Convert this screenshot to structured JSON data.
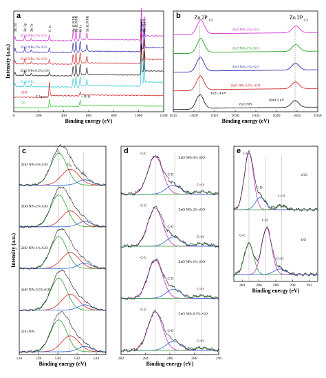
{
  "chart_data": [
    {
      "id": "a",
      "type": "line",
      "panel_label": "a",
      "xlabel": "Binding energy (eV)",
      "ylabel": "Intensity (a.u.)",
      "xlim": [
        0,
        1200
      ],
      "xticks": [
        0,
        200,
        400,
        600,
        800,
        1000,
        1200
      ],
      "peak_labels": [
        {
          "text": "Zn 3d",
          "x": 10
        },
        {
          "text": "Zn 3p",
          "x": 88
        },
        {
          "text": "Zn 3s",
          "x": 140
        },
        {
          "text": "C 1s",
          "x": 285
        },
        {
          "text": "Zn (LMM)",
          "x": 498
        },
        {
          "text": "Zn (LMM)",
          "x": 475
        },
        {
          "text": "O 1s",
          "x": 531
        },
        {
          "text": "Zn (LMM)",
          "x": 585
        },
        {
          "text": "Zn 2p3/2",
          "x": 1021
        },
        {
          "text": "Zn 2p1/2",
          "x": 1044
        }
      ],
      "series": [
        {
          "name": "ZnO NPs-3% rGO",
          "color": "#d030d0",
          "offset": 6,
          "features": [
            [
              10,
              0.3
            ],
            [
              88,
              0.4
            ],
            [
              140,
              0.2
            ],
            [
              285,
              0.5
            ],
            [
              475,
              0.8
            ],
            [
              498,
              1.0
            ],
            [
              531,
              0.9
            ],
            [
              585,
              0.6
            ],
            [
              1021,
              2.6
            ],
            [
              1044,
              1.8
            ]
          ]
        },
        {
          "name": "ZnO NPs-2% rGO",
          "color": "#2828b0",
          "offset": 5,
          "features": [
            [
              10,
              0.3
            ],
            [
              88,
              0.4
            ],
            [
              140,
              0.2
            ],
            [
              285,
              0.4
            ],
            [
              475,
              0.8
            ],
            [
              498,
              1.0
            ],
            [
              531,
              0.9
            ],
            [
              585,
              0.6
            ],
            [
              1021,
              2.6
            ],
            [
              1044,
              1.8
            ]
          ]
        },
        {
          "name": "ZnO NPs-1% rGO",
          "color": "#d02828",
          "offset": 4,
          "features": [
            [
              10,
              0.3
            ],
            [
              88,
              0.4
            ],
            [
              140,
              0.2
            ],
            [
              285,
              0.4
            ],
            [
              475,
              0.8
            ],
            [
              498,
              1.0
            ],
            [
              531,
              0.9
            ],
            [
              585,
              0.6
            ],
            [
              1021,
              2.6
            ],
            [
              1044,
              1.8
            ]
          ]
        },
        {
          "name": "ZnO NPs-0.5% rGO",
          "color": "#202020",
          "offset": 3,
          "features": [
            [
              10,
              0.3
            ],
            [
              88,
              0.4
            ],
            [
              140,
              0.2
            ],
            [
              285,
              0.3
            ],
            [
              475,
              0.8
            ],
            [
              498,
              1.0
            ],
            [
              531,
              0.9
            ],
            [
              585,
              0.6
            ],
            [
              1021,
              2.6
            ],
            [
              1044,
              1.8
            ]
          ]
        },
        {
          "name": "ZnO NPs",
          "color": "#30c8d8",
          "offset": 2.05,
          "features": [
            [
              10,
              0.3
            ],
            [
              88,
              0.4
            ],
            [
              140,
              0.2
            ],
            [
              475,
              0.7
            ],
            [
              498,
              0.9
            ],
            [
              531,
              0.8
            ],
            [
              585,
              0.5
            ],
            [
              1021,
              2.6
            ],
            [
              1044,
              1.8
            ]
          ]
        },
        {
          "name": "rGO",
          "color": "#d02020",
          "offset": 1.15,
          "features": [
            [
              285,
              1.2
            ],
            [
              531,
              0.25
            ]
          ]
        },
        {
          "name": "GO",
          "color": "#28c828",
          "offset": 0.25,
          "features": [
            [
              285,
              0.6
            ],
            [
              531,
              0.45
            ]
          ]
        }
      ],
      "annotations": [
        {
          "text": "C 1s"
        },
        {
          "text": "O 1s"
        }
      ]
    },
    {
      "id": "b",
      "type": "line",
      "panel_label": "b",
      "xlabel": "Binding energy (eV)",
      "ylabel": "",
      "xlim": [
        1015,
        1050
      ],
      "xticks": [
        1015,
        1020,
        1025,
        1030,
        1035,
        1040,
        1045,
        1050
      ],
      "headers": [
        {
          "text": "Zn 2P",
          "sub": "3/2",
          "x": 1021.4
        },
        {
          "text": "Zn 2P",
          "sub": "1/2",
          "x": 1044.5
        }
      ],
      "peak_annotations": [
        "1021.4 eV",
        "1044.5 eV"
      ],
      "series": [
        {
          "name": "ZnO NPs-3% rGO",
          "color": "#d030d0",
          "offset": 4,
          "shift": 0.2
        },
        {
          "name": "ZnO NPs-2% rGO",
          "color": "#20a020",
          "offset": 3,
          "shift": 0.2
        },
        {
          "name": "ZnO NPs-1% rGO",
          "color": "#2828b0",
          "offset": 2,
          "shift": 0.1
        },
        {
          "name": "ZnO NPs-0.5% rGO",
          "color": "#d02828",
          "offset": 1,
          "shift": 0.1
        },
        {
          "name": "ZnO NPs",
          "color": "#202020",
          "offset": 0,
          "shift": 0
        }
      ]
    },
    {
      "id": "c",
      "type": "line",
      "panel_label": "c",
      "xlabel": "Binding energy (eV)",
      "ylabel": "Intensity (a.u.)",
      "xlim": [
        526,
        535
      ],
      "xticks": [
        526,
        528,
        530,
        532,
        534
      ],
      "component_labels": [
        {
          "text": "O",
          "sub": "L"
        },
        {
          "text": "O",
          "sub": "H"
        },
        {
          "text": "O",
          "sub": "C"
        }
      ],
      "samples": [
        "ZnO NPs-3% rGO",
        "ZnO NPs-2% rGO",
        "ZnO NPs-1% rGO",
        "ZnO NPs-0.5% rGO",
        "ZnO NPs"
      ]
    },
    {
      "id": "d",
      "type": "line",
      "panel_label": "d",
      "xlabel": "Binding energy (eV)",
      "ylabel": "",
      "xlim": [
        282,
        290
      ],
      "xticks": [
        282,
        284,
        286,
        288,
        290
      ],
      "component_labels": [
        "C-C",
        "C-O",
        "C=O"
      ],
      "samples": [
        "ZnO NPs-3% rGO",
        "ZnO NPs-2% rGO",
        "ZnO NPs-1% rGO",
        "ZnO NPs-0.5% rGO"
      ]
    },
    {
      "id": "e",
      "type": "line",
      "panel_label": "e",
      "xlabel": "Binding energy (eV)",
      "ylabel": "",
      "xlim": [
        283,
        293
      ],
      "xticks": [
        284,
        286,
        288,
        290,
        292
      ],
      "component_labels": [
        "C-C",
        "C-O",
        "C=O"
      ],
      "samples": [
        "rGO",
        "GO"
      ]
    }
  ]
}
